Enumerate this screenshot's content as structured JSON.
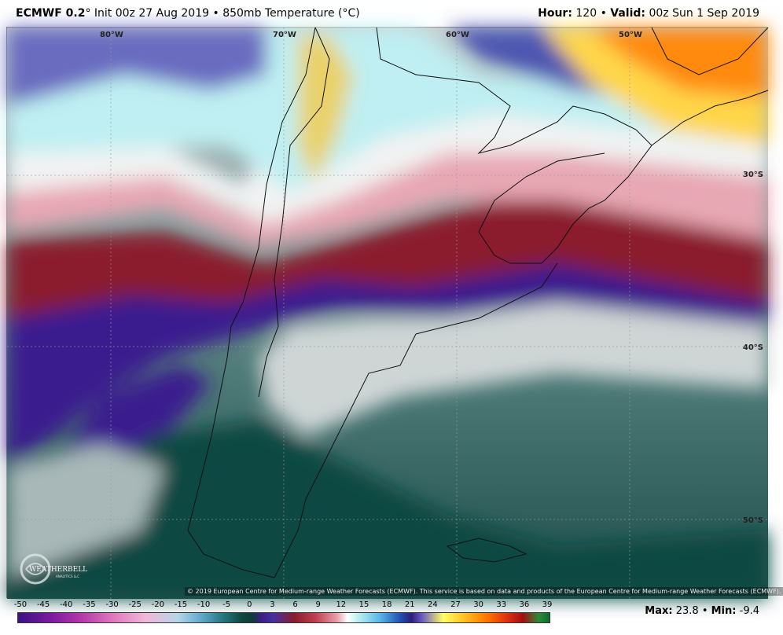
{
  "header": {
    "model": "ECMWF 0.2",
    "degree_symbol": "°",
    "init": "Init 00z 27 Aug 2019",
    "bullet": "•",
    "product": "850mb Temperature (°C)",
    "hour_label": "Hour:",
    "hour_value": "120",
    "valid_label": "Valid:",
    "valid_value": "00z Sun 1 Sep 2019"
  },
  "map": {
    "longitude_labels": [
      "80°W",
      "70°W",
      "60°W",
      "50°W"
    ],
    "latitude_labels": [
      "30°S",
      "40°S",
      "50°S"
    ],
    "copyright": "© 2019 European Centre for Medium-range Weather Forecasts (ECMWF). This service is based on data and products of the European Centre for Medium-range Weather Forecasts (ECMWF).",
    "logo_text": "WEATHERBELL",
    "logo_subtext": "ANALYTICS LLC"
  },
  "legend": {
    "ticks": [
      "-50",
      "-45",
      "-40",
      "-35",
      "-30",
      "-25",
      "-20",
      "-15",
      "-10",
      "-5",
      "0",
      "3",
      "6",
      "9",
      "12",
      "15",
      "18",
      "21",
      "24",
      "27",
      "30",
      "33",
      "36",
      "39"
    ]
  },
  "stats": {
    "max_label": "Max:",
    "max_value": "23.8",
    "min_label": "Min:",
    "min_value": "-9.4"
  }
}
